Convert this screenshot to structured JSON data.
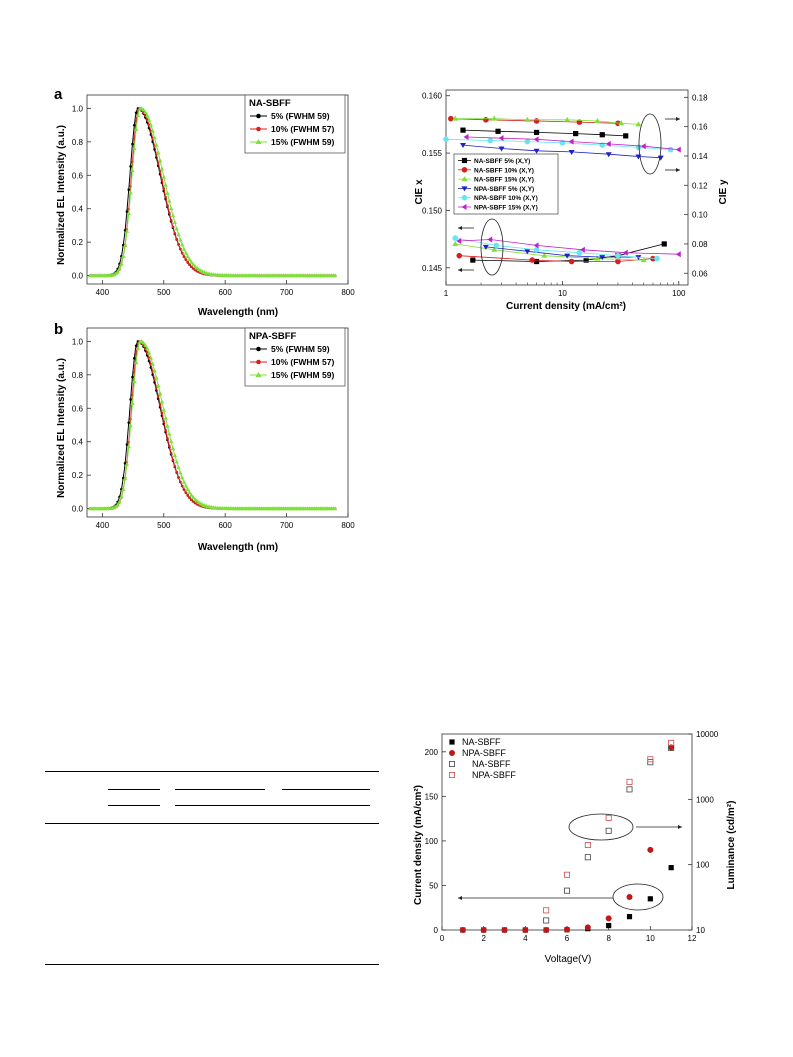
{
  "figures": {
    "panel_a": {
      "label": "a",
      "legend_title": "NA-SBFF",
      "xlabel": "Wavelength (nm)",
      "ylabel": "Normalized EL Intensity (a.u.)",
      "x_ticks": [
        "400",
        "500",
        "600",
        "700",
        "800"
      ],
      "y_ticks": [
        "0.0",
        "0.2",
        "0.4",
        "0.6",
        "0.8",
        "1.0"
      ],
      "series_labels": [
        "5% (FWHM 59)",
        "10% (FWHM 57)",
        "15% (FWHM 59)"
      ],
      "colors": [
        "#000000",
        "#d81e1e",
        "#7fe03a"
      ]
    },
    "panel_b": {
      "label": "b",
      "legend_title": "NPA-SBFF",
      "xlabel": "Wavelength (nm)",
      "ylabel": "Normalized EL Intensity (a.u.)",
      "x_ticks": [
        "400",
        "500",
        "600",
        "700",
        "800"
      ],
      "y_ticks": [
        "0.0",
        "0.2",
        "0.4",
        "0.6",
        "0.8",
        "1.0"
      ],
      "series_labels": [
        "5% (FWHM 59)",
        "10% (FWHM 57)",
        "15% (FWHM 59)"
      ],
      "colors": [
        "#000000",
        "#d81e1e",
        "#7fe03a"
      ]
    },
    "panel_cie": {
      "xlabel": "Current density (mA/cm²)",
      "ylabel_left": "CIE x",
      "ylabel_right": "CIE y",
      "x_ticks": [
        "1",
        "10",
        "100"
      ],
      "y_left_ticks": [
        "0.145",
        "0.150",
        "0.155",
        "0.160"
      ],
      "y_right_ticks": [
        "0.06",
        "0.08",
        "0.10",
        "0.12",
        "0.14",
        "0.16",
        "0.18"
      ],
      "legend": [
        "NA-SBFF 5% (X,Y)",
        "NA-SBFF 10% (X,Y)",
        "NA-SBFF 15% (X,Y)",
        "NPA-SBFF 5% (X,Y)",
        "NPA-SBFF 10% (X,Y)",
        "NPA-SBFF 15% (X,Y)"
      ],
      "colors": [
        "#000000",
        "#d81e1e",
        "#7fe03a",
        "#2020c8",
        "#66e6f0",
        "#c020c8"
      ]
    },
    "panel_jvl": {
      "xlabel": "Voltage(V)",
      "ylabel_left": "Current density (mA/cm²)",
      "ylabel_right": "Luminance (cd/m²)",
      "x_ticks": [
        "0",
        "2",
        "4",
        "6",
        "8",
        "10",
        "12"
      ],
      "y_left_ticks": [
        "0",
        "50",
        "100",
        "150",
        "200"
      ],
      "y_right_ticks": [
        "10",
        "100",
        "1000",
        "10000"
      ],
      "legend": [
        "NA-SBFF",
        "NPA-SBFF",
        "NA-SBFF",
        "NPA-SBFF"
      ]
    }
  },
  "chart_data": [
    {
      "type": "line",
      "panel": "a",
      "title": "",
      "xlabel": "Wavelength (nm)",
      "ylabel": "Normalized EL Intensity (a.u.)",
      "xlim": [
        375,
        800
      ],
      "ylim": [
        -0.05,
        1.08
      ],
      "peak_nm": [
        458,
        460,
        462
      ],
      "series": [
        {
          "name": "5% (FWHM 59)",
          "peak_x": 458
        },
        {
          "name": "10% (FWHM 57)",
          "peak_x": 460
        },
        {
          "name": "15% (FWHM 59)",
          "peak_x": 462
        }
      ]
    },
    {
      "type": "line",
      "panel": "b",
      "title": "",
      "xlabel": "Wavelength (nm)",
      "ylabel": "Normalized EL Intensity (a.u.)",
      "xlim": [
        375,
        800
      ],
      "ylim": [
        -0.05,
        1.08
      ],
      "series": [
        {
          "name": "5% (FWHM 59)",
          "peak_x": 458
        },
        {
          "name": "10% (FWHM 57)",
          "peak_x": 460
        },
        {
          "name": "15% (FWHM 59)",
          "peak_x": 462
        }
      ]
    },
    {
      "type": "scatter",
      "panel": "cie",
      "xlabel": "Current density (mA/cm²)",
      "ylabel": "CIE x",
      "ylabel_right": "CIE y",
      "xscale": "log",
      "xlim": [
        1,
        120
      ],
      "ylim_left": [
        0.1435,
        0.1605
      ],
      "ylim_right": [
        0.052,
        0.185
      ],
      "series": [
        {
          "name": "NA-SBFF 5% (X,Y)",
          "axis": "x",
          "x": [
            1.4,
            2.8,
            6,
            13,
            22,
            35
          ],
          "y": [
            0.157,
            0.1569,
            0.1568,
            0.1567,
            0.1566,
            0.1565
          ]
        },
        {
          "name": "NA-SBFF 10% (X,Y)",
          "axis": "x",
          "x": [
            1.1,
            2.2,
            6,
            14,
            30
          ],
          "y": [
            0.158,
            0.1579,
            0.1578,
            0.1577,
            0.1576
          ]
        },
        {
          "name": "NA-SBFF 15% (X,Y)",
          "axis": "x",
          "x": [
            1.2,
            2.6,
            5,
            11,
            20,
            32,
            45
          ],
          "y": [
            0.158,
            0.158,
            0.1579,
            0.1579,
            0.1578,
            0.1576,
            0.1575
          ]
        },
        {
          "name": "NPA-SBFF 5% (X,Y)",
          "axis": "x",
          "x": [
            1.4,
            3,
            6,
            12,
            25,
            45,
            70
          ],
          "y": [
            0.1557,
            0.1554,
            0.1552,
            0.1551,
            0.1549,
            0.1547,
            0.1546
          ]
        },
        {
          "name": "NPA-SBFF 10% (X,Y)",
          "axis": "x",
          "x": [
            1,
            2.4,
            5,
            10,
            22,
            45,
            85
          ],
          "y": [
            0.1562,
            0.1561,
            0.156,
            0.1559,
            0.1557,
            0.1555,
            0.1553
          ]
        },
        {
          "name": "NPA-SBFF 15% (X,Y)",
          "axis": "x",
          "x": [
            1.5,
            3,
            6,
            12,
            25,
            50,
            100
          ],
          "y": [
            0.1564,
            0.1563,
            0.1562,
            0.156,
            0.1558,
            0.1556,
            0.1553
          ]
        },
        {
          "name": "NA-SBFF 5% (X,Y)",
          "axis": "y",
          "x": [
            1.7,
            6,
            16,
            30,
            75
          ],
          "y": [
            0.069,
            0.068,
            0.069,
            0.072,
            0.08
          ]
        },
        {
          "name": "NA-SBFF 10% (X,Y)",
          "axis": "y",
          "x": [
            1.3,
            5.5,
            12,
            30,
            60
          ],
          "y": [
            0.072,
            0.069,
            0.068,
            0.068,
            0.07
          ]
        },
        {
          "name": "NA-SBFF 15% (X,Y)",
          "axis": "y",
          "x": [
            1.2,
            2.6,
            7,
            20,
            50
          ],
          "y": [
            0.08,
            0.076,
            0.072,
            0.07,
            0.069
          ]
        },
        {
          "name": "NPA-SBFF 5% (X,Y)",
          "axis": "y",
          "x": [
            2.2,
            5,
            11,
            22,
            45
          ],
          "y": [
            0.078,
            0.075,
            0.072,
            0.071,
            0.071
          ]
        },
        {
          "name": "NPA-SBFF 10% (X,Y)",
          "axis": "y",
          "x": [
            1.2,
            2.7,
            6,
            14,
            30,
            65
          ],
          "y": [
            0.084,
            0.079,
            0.076,
            0.074,
            0.072,
            0.07
          ]
        },
        {
          "name": "NPA-SBFF 15% (X,Y)",
          "axis": "y",
          "x": [
            1.3,
            2.4,
            6,
            15,
            35,
            100
          ],
          "y": [
            0.082,
            0.083,
            0.079,
            0.076,
            0.074,
            0.073
          ]
        }
      ]
    },
    {
      "type": "scatter",
      "panel": "jvl",
      "xlabel": "Voltage(V)",
      "ylabel": "Current density (mA/cm²)",
      "ylabel_right": "Luminance (cd/m²)",
      "xlim": [
        0,
        12
      ],
      "ylim_left": [
        0,
        220
      ],
      "ylim_right": [
        10,
        10000
      ],
      "yscale_right": "log",
      "series": [
        {
          "name": "NA-SBFF",
          "axis": "left",
          "x": [
            1,
            2,
            3,
            4,
            5,
            6,
            7,
            8,
            9,
            10,
            11
          ],
          "y": [
            0,
            0,
            0,
            0,
            0,
            0.3,
            1.5,
            5,
            15,
            35,
            70
          ]
        },
        {
          "name": "NPA-SBFF",
          "axis": "left",
          "x": [
            1,
            2,
            3,
            4,
            5,
            6,
            7,
            8,
            9,
            10,
            11
          ],
          "y": [
            0,
            0,
            0,
            0,
            0,
            0.5,
            3,
            13,
            37,
            90,
            205
          ]
        },
        {
          "name": "NA-SBFF",
          "axis": "right",
          "x": [
            5,
            6,
            7,
            8,
            9,
            10,
            11
          ],
          "y": [
            14,
            40,
            130,
            330,
            1420,
            3700,
            6100
          ]
        },
        {
          "name": "NPA-SBFF",
          "axis": "right",
          "x": [
            5,
            6,
            7,
            8,
            9,
            10,
            11
          ],
          "y": [
            20,
            70,
            200,
            520,
            1850,
            4100,
            7300
          ]
        }
      ]
    }
  ]
}
